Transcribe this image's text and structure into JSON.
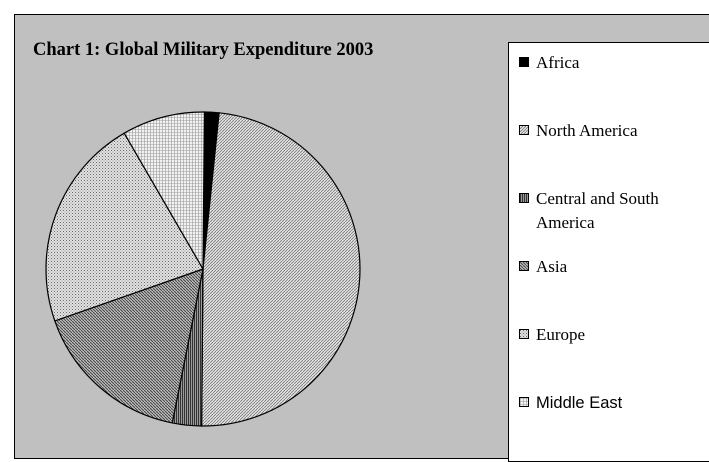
{
  "chart_data": {
    "type": "pie",
    "title": "Chart 1: Global Military Expenditure 2003",
    "categories": [
      "Africa",
      "North America",
      "Central and South America",
      "Asia",
      "Europe",
      "Middle East"
    ],
    "values": [
      1.5,
      48.5,
      3.0,
      16.5,
      22.0,
      8.5
    ],
    "unit": "percent of total",
    "legend_position": "right",
    "slices": [
      {
        "label": "Africa",
        "value": 1.5,
        "fill": "#000000",
        "pattern": "solid"
      },
      {
        "label": "North America",
        "value": 48.5,
        "fill": "#d4d4d4",
        "pattern": "fine-diagonal"
      },
      {
        "label": "Central and South America",
        "value": 3.0,
        "fill": "#606060",
        "pattern": "dense-vertical"
      },
      {
        "label": "Asia",
        "value": 16.5,
        "fill": "#8c8c8c",
        "pattern": "diagonal"
      },
      {
        "label": "Europe",
        "value": 22.0,
        "fill": "#c0c0c0",
        "pattern": "dotted"
      },
      {
        "label": "Middle East",
        "value": 8.5,
        "fill": "#eaeaea",
        "pattern": "light-grid"
      }
    ]
  },
  "colors": {
    "chart_background": "#c0c0c0",
    "legend_background": "#ffffff",
    "outline": "#000000"
  }
}
